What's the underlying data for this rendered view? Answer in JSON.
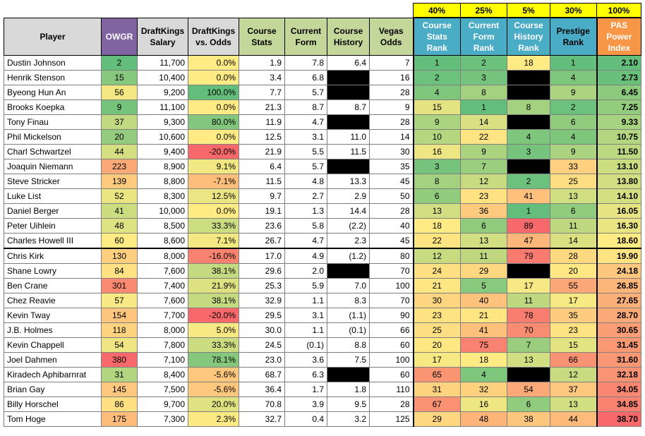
{
  "weights": [
    "40%",
    "25%",
    "5%",
    "30%",
    "100%"
  ],
  "headers": {
    "player": "Player",
    "owgr": "OWGR",
    "dk_salary": "DraftKings Salary",
    "dk_vs_odds": "DraftKings vs. Odds",
    "course_stats": "Course Stats",
    "current_form": "Current Form",
    "course_history": "Course History",
    "vegas_odds": "Vegas Odds",
    "course_stats_rank": "Course Stats Rank",
    "current_form_rank": "Current Form Rank",
    "course_history_rank": "Course History Rank",
    "prestige_rank": "Prestige Rank",
    "pas_power_index": "PAS Power Index"
  },
  "colors": {
    "green": "#63be7b",
    "yellow": "#ffeb84",
    "red": "#f8696b",
    "header_gray": "#d9d9d9",
    "header_purple": "#8064a2",
    "header_green": "#c4d79b",
    "header_blue": "#4bacc6",
    "header_orange": "#f79646",
    "weight_yellow": "#ffff00"
  },
  "rows": [
    {
      "player": "Dustin Johnson",
      "owgr": "2",
      "salary": "11,700",
      "vs_odds": "0.0%",
      "course_stats": "1.9",
      "current_form": "7.8",
      "course_history": "6.4",
      "vegas_odds": "7",
      "cs_rank": "1",
      "cf_rank": "2",
      "ch_rank": "18",
      "prestige_rank": "1",
      "pas": "2.10"
    },
    {
      "player": "Henrik Stenson",
      "owgr": "15",
      "salary": "10,400",
      "vs_odds": "0.0%",
      "course_stats": "3.4",
      "current_form": "6.8",
      "course_history": null,
      "vegas_odds": "16",
      "cs_rank": "2",
      "cf_rank": "3",
      "ch_rank": null,
      "prestige_rank": "4",
      "pas": "2.73"
    },
    {
      "player": "Byeong Hun An",
      "owgr": "56",
      "salary": "9,200",
      "vs_odds": "100.0%",
      "course_stats": "7.7",
      "current_form": "5.7",
      "course_history": null,
      "vegas_odds": "28",
      "cs_rank": "4",
      "cf_rank": "8",
      "ch_rank": null,
      "prestige_rank": "9",
      "pas": "6.45"
    },
    {
      "player": "Brooks Koepka",
      "owgr": "9",
      "salary": "11,100",
      "vs_odds": "0.0%",
      "course_stats": "21.3",
      "current_form": "8.7",
      "course_history": "8.7",
      "vegas_odds": "9",
      "cs_rank": "15",
      "cf_rank": "1",
      "ch_rank": "8",
      "prestige_rank": "2",
      "pas": "7.25"
    },
    {
      "player": "Tony Finau",
      "owgr": "37",
      "salary": "9,300",
      "vs_odds": "80.0%",
      "course_stats": "11.9",
      "current_form": "4.7",
      "course_history": null,
      "vegas_odds": "28",
      "cs_rank": "9",
      "cf_rank": "14",
      "ch_rank": null,
      "prestige_rank": "6",
      "pas": "9.33"
    },
    {
      "player": "Phil Mickelson",
      "owgr": "20",
      "salary": "10,600",
      "vs_odds": "0.0%",
      "course_stats": "12.5",
      "current_form": "3.1",
      "course_history": "11.0",
      "vegas_odds": "14",
      "cs_rank": "10",
      "cf_rank": "22",
      "ch_rank": "4",
      "prestige_rank": "4",
      "pas": "10.75"
    },
    {
      "player": "Charl Schwartzel",
      "owgr": "44",
      "salary": "9,400",
      "vs_odds": "-20.0%",
      "course_stats": "21.9",
      "current_form": "5.5",
      "course_history": "11.5",
      "vegas_odds": "30",
      "cs_rank": "16",
      "cf_rank": "9",
      "ch_rank": "3",
      "prestige_rank": "9",
      "pas": "11.50"
    },
    {
      "player": "Joaquin Niemann",
      "owgr": "223",
      "salary": "8,900",
      "vs_odds": "9.1%",
      "course_stats": "6.4",
      "current_form": "5.7",
      "course_history": null,
      "vegas_odds": "35",
      "cs_rank": "3",
      "cf_rank": "7",
      "ch_rank": null,
      "prestige_rank": "33",
      "pas": "13.10"
    },
    {
      "player": "Steve Stricker",
      "owgr": "139",
      "salary": "8,800",
      "vs_odds": "-7.1%",
      "course_stats": "11.5",
      "current_form": "4.8",
      "course_history": "13.3",
      "vegas_odds": "45",
      "cs_rank": "8",
      "cf_rank": "12",
      "ch_rank": "2",
      "prestige_rank": "25",
      "pas": "13.80"
    },
    {
      "player": "Luke List",
      "owgr": "52",
      "salary": "8,300",
      "vs_odds": "12.5%",
      "course_stats": "9.7",
      "current_form": "2.7",
      "course_history": "2.9",
      "vegas_odds": "50",
      "cs_rank": "6",
      "cf_rank": "23",
      "ch_rank": "41",
      "prestige_rank": "13",
      "pas": "14.10"
    },
    {
      "player": "Daniel Berger",
      "owgr": "41",
      "salary": "10,000",
      "vs_odds": "0.0%",
      "course_stats": "19.1",
      "current_form": "1.3",
      "course_history": "14.4",
      "vegas_odds": "28",
      "cs_rank": "13",
      "cf_rank": "36",
      "ch_rank": "1",
      "prestige_rank": "6",
      "pas": "16.05"
    },
    {
      "player": "Peter Uihlein",
      "owgr": "48",
      "salary": "8,500",
      "vs_odds": "33.3%",
      "course_stats": "23.6",
      "current_form": "5.8",
      "course_history": "(2.2)",
      "vegas_odds": "40",
      "cs_rank": "18",
      "cf_rank": "6",
      "ch_rank": "89",
      "prestige_rank": "11",
      "pas": "16.30"
    },
    {
      "player": "Charles Howell III",
      "owgr": "60",
      "salary": "8,600",
      "vs_odds": "7.1%",
      "course_stats": "26.7",
      "current_form": "4.7",
      "course_history": "2.3",
      "vegas_odds": "45",
      "cs_rank": "22",
      "cf_rank": "13",
      "ch_rank": "47",
      "prestige_rank": "14",
      "pas": "18.60"
    },
    {
      "player": "Chris Kirk",
      "owgr": "130",
      "salary": "8,000",
      "vs_odds": "-16.0%",
      "course_stats": "17.0",
      "current_form": "4.9",
      "course_history": "(1.2)",
      "vegas_odds": "80",
      "cs_rank": "12",
      "cf_rank": "11",
      "ch_rank": "79",
      "prestige_rank": "28",
      "pas": "19.90"
    },
    {
      "player": "Shane Lowry",
      "owgr": "84",
      "salary": "7,600",
      "vs_odds": "38.1%",
      "course_stats": "29.6",
      "current_form": "2.0",
      "course_history": null,
      "vegas_odds": "70",
      "cs_rank": "24",
      "cf_rank": "29",
      "ch_rank": null,
      "prestige_rank": "20",
      "pas": "24.18"
    },
    {
      "player": "Ben Crane",
      "owgr": "301",
      "salary": "7,400",
      "vs_odds": "21.9%",
      "course_stats": "25.3",
      "current_form": "5.9",
      "course_history": "7.0",
      "vegas_odds": "100",
      "cs_rank": "21",
      "cf_rank": "5",
      "ch_rank": "17",
      "prestige_rank": "55",
      "pas": "26.85"
    },
    {
      "player": "Chez Reavie",
      "owgr": "57",
      "salary": "7,600",
      "vs_odds": "38.1%",
      "course_stats": "32.9",
      "current_form": "1.1",
      "course_history": "8.3",
      "vegas_odds": "70",
      "cs_rank": "30",
      "cf_rank": "40",
      "ch_rank": "11",
      "prestige_rank": "17",
      "pas": "27.65"
    },
    {
      "player": "Kevin Tway",
      "owgr": "154",
      "salary": "7,700",
      "vs_odds": "-20.0%",
      "course_stats": "29.5",
      "current_form": "3.1",
      "course_history": "(1.1)",
      "vegas_odds": "90",
      "cs_rank": "23",
      "cf_rank": "21",
      "ch_rank": "78",
      "prestige_rank": "35",
      "pas": "28.70"
    },
    {
      "player": "J.B. Holmes",
      "owgr": "118",
      "salary": "8,000",
      "vs_odds": "5.0%",
      "course_stats": "30.0",
      "current_form": "1.1",
      "course_history": "(0.1)",
      "vegas_odds": "66",
      "cs_rank": "25",
      "cf_rank": "41",
      "ch_rank": "70",
      "prestige_rank": "23",
      "pas": "30.65"
    },
    {
      "player": "Kevin Chappell",
      "owgr": "54",
      "salary": "7,800",
      "vs_odds": "33.3%",
      "course_stats": "24.5",
      "current_form": "(0.1)",
      "course_history": "8.8",
      "vegas_odds": "60",
      "cs_rank": "20",
      "cf_rank": "75",
      "ch_rank": "7",
      "prestige_rank": "15",
      "pas": "31.45"
    },
    {
      "player": "Joel Dahmen",
      "owgr": "380",
      "salary": "7,100",
      "vs_odds": "78.1%",
      "course_stats": "23.0",
      "current_form": "3.6",
      "course_history": "7.5",
      "vegas_odds": "100",
      "cs_rank": "17",
      "cf_rank": "18",
      "ch_rank": "13",
      "prestige_rank": "66",
      "pas": "31.60"
    },
    {
      "player": "Kiradech Aphibarnrat",
      "owgr": "31",
      "salary": "8,400",
      "vs_odds": "-5.6%",
      "course_stats": "68.7",
      "current_form": "6.3",
      "course_history": null,
      "vegas_odds": "60",
      "cs_rank": "65",
      "cf_rank": "4",
      "ch_rank": null,
      "prestige_rank": "12",
      "pas": "32.18"
    },
    {
      "player": "Brian Gay",
      "owgr": "145",
      "salary": "7,500",
      "vs_odds": "-5.6%",
      "course_stats": "36.4",
      "current_form": "1.7",
      "course_history": "1.8",
      "vegas_odds": "110",
      "cs_rank": "31",
      "cf_rank": "32",
      "ch_rank": "54",
      "prestige_rank": "37",
      "pas": "34.05"
    },
    {
      "player": "Billy Horschel",
      "owgr": "86",
      "salary": "9,700",
      "vs_odds": "20.0%",
      "course_stats": "70.8",
      "current_form": "3.9",
      "course_history": "9.5",
      "vegas_odds": "28",
      "cs_rank": "67",
      "cf_rank": "16",
      "ch_rank": "6",
      "prestige_rank": "13",
      "pas": "34.85"
    },
    {
      "player": "Tom Hoge",
      "owgr": "175",
      "salary": "7,300",
      "vs_odds": "2.3%",
      "course_stats": "32.7",
      "current_form": "0.4",
      "course_history": "3.2",
      "vegas_odds": "125",
      "cs_rank": "29",
      "cf_rank": "48",
      "ch_rank": "38",
      "prestige_rank": "44",
      "pas": "38.70"
    }
  ]
}
